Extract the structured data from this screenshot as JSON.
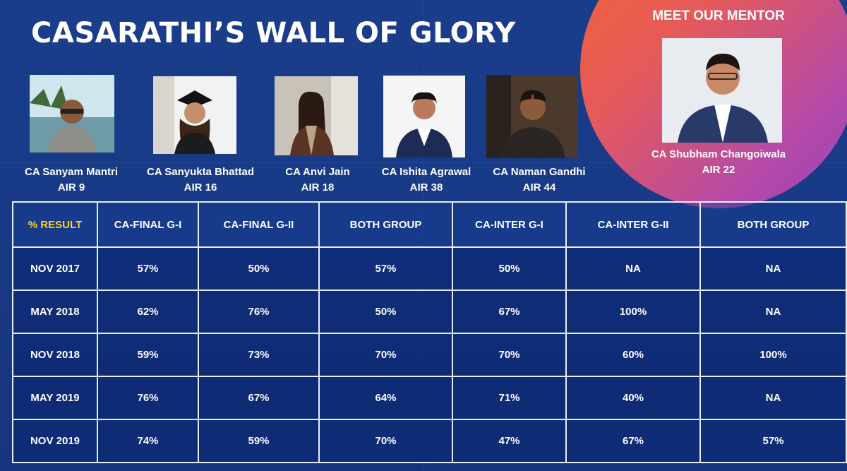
{
  "title": "CASARATHI’S WALL OF GLORY",
  "toppers": [
    {
      "name": "CA Sanyam Mantri",
      "rank": "AIR 9"
    },
    {
      "name": "CA Sanyukta Bhattad",
      "rank": "AIR 16"
    },
    {
      "name": "CA Anvi Jain",
      "rank": "AIR 18"
    },
    {
      "name": "CA Ishita Agrawal",
      "rank": "AIR 38"
    },
    {
      "name": "CA Naman Gandhi",
      "rank": "AIR 44"
    }
  ],
  "mentor": {
    "heading": "MEET OUR MENTOR",
    "name": "CA Shubham Changoiwala",
    "rank": "AIR 22"
  },
  "table": {
    "headers": [
      "% RESULT",
      "CA-FINAL G-I",
      "CA-FINAL G-II",
      "BOTH GROUP",
      "CA-INTER G-I",
      "CA-INTER G-II",
      "BOTH GROUP"
    ],
    "rows": [
      [
        "NOV 2017",
        "57%",
        "50%",
        "57%",
        "50%",
        "NA",
        "NA"
      ],
      [
        "MAY 2018",
        "62%",
        "76%",
        "50%",
        "67%",
        "100%",
        "NA"
      ],
      [
        "NOV 2018",
        "59%",
        "73%",
        "70%",
        "70%",
        "60%",
        "100%"
      ],
      [
        "MAY 2019",
        "76%",
        "67%",
        "64%",
        "71%",
        "40%",
        "NA"
      ],
      [
        "NOV 2019",
        "74%",
        "59%",
        "70%",
        "47%",
        "67%",
        "57%"
      ]
    ]
  },
  "colors": {
    "background": "#183a86",
    "header_highlight": "#ffd21f",
    "mentor_gradient_start": "#f06436",
    "mentor_gradient_end": "#9443bd"
  }
}
